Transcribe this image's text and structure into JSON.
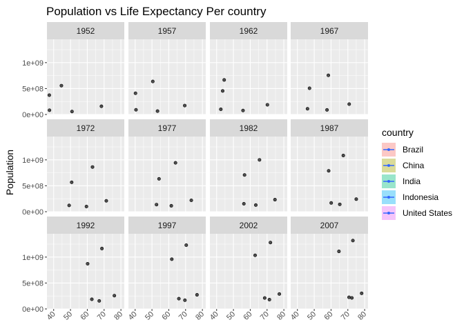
{
  "chart_data": {
    "type": "scatter",
    "title": "Population vs Life Expectancy Per country",
    "xlabel": "",
    "ylabel": "Population",
    "xlim": [
      36,
      82
    ],
    "ylim": [
      0,
      1450000000
    ],
    "x_ticks": [
      40,
      50,
      60,
      70,
      80
    ],
    "x_tick_labels": [
      "40",
      "50",
      "60",
      "70",
      "80"
    ],
    "y_ticks": [
      0,
      500000000,
      1000000000
    ],
    "y_tick_labels": [
      "0e+00",
      "5e+08",
      "1e+09"
    ],
    "grid": true,
    "legend": {
      "title": "country",
      "position": "right",
      "entries": [
        {
          "name": "Brazil",
          "color": "#F8766D"
        },
        {
          "name": "China",
          "color": "#A3A500"
        },
        {
          "name": "India",
          "color": "#00BF7D"
        },
        {
          "name": "Indonesia",
          "color": "#00B0F6"
        },
        {
          "name": "United States",
          "color": "#E76BF3"
        }
      ]
    },
    "point_color": "#333333",
    "line_color": "#3366FF",
    "facets": [
      {
        "label": "1952",
        "points": [
          [
            37.4,
            372000000
          ],
          [
            37.5,
            82000000
          ],
          [
            44.6,
            556000000
          ],
          [
            50.9,
            57000000
          ],
          [
            68.4,
            158000000
          ]
        ]
      },
      {
        "label": "1957",
        "points": [
          [
            40.2,
            409000000
          ],
          [
            40.5,
            90000000
          ],
          [
            50.5,
            637000000
          ],
          [
            53.3,
            65000000
          ],
          [
            69.5,
            172000000
          ]
        ]
      },
      {
        "label": "1962",
        "points": [
          [
            43.6,
            454000000
          ],
          [
            42.5,
            100000000
          ],
          [
            44.5,
            666000000
          ],
          [
            55.7,
            76000000
          ],
          [
            70.2,
            187000000
          ]
        ]
      },
      {
        "label": "1967",
        "points": [
          [
            47.2,
            506000000
          ],
          [
            46.0,
            110000000
          ],
          [
            58.4,
            755000000
          ],
          [
            57.6,
            88000000
          ],
          [
            70.8,
            199000000
          ]
        ]
      },
      {
        "label": "1972",
        "points": [
          [
            50.7,
            567000000
          ],
          [
            49.2,
            121000000
          ],
          [
            63.1,
            862000000
          ],
          [
            59.5,
            100000000
          ],
          [
            71.3,
            210000000
          ]
        ]
      },
      {
        "label": "1977",
        "points": [
          [
            54.2,
            634000000
          ],
          [
            52.7,
            137000000
          ],
          [
            64.0,
            943000000
          ],
          [
            61.5,
            114000000
          ],
          [
            73.4,
            220000000
          ]
        ]
      },
      {
        "label": "1982",
        "points": [
          [
            56.6,
            708000000
          ],
          [
            56.2,
            153000000
          ],
          [
            65.5,
            1000000000
          ],
          [
            63.3,
            128000000
          ],
          [
            74.7,
            232000000
          ]
        ]
      },
      {
        "label": "1987",
        "points": [
          [
            58.6,
            788000000
          ],
          [
            60.1,
            169000000
          ],
          [
            67.3,
            1084000000
          ],
          [
            65.2,
            142000000
          ],
          [
            75.0,
            242000000
          ]
        ]
      },
      {
        "label": "1992",
        "points": [
          [
            60.2,
            872000000
          ],
          [
            62.7,
            186000000
          ],
          [
            68.7,
            1165000000
          ],
          [
            67.1,
            155000000
          ],
          [
            76.1,
            256000000
          ]
        ]
      },
      {
        "label": "1997",
        "points": [
          [
            61.8,
            959000000
          ],
          [
            66.0,
            198000000
          ],
          [
            70.4,
            1230000000
          ],
          [
            69.6,
            168000000
          ],
          [
            76.8,
            272000000
          ]
        ]
      },
      {
        "label": "2002",
        "points": [
          [
            62.9,
            1034000000
          ],
          [
            68.6,
            211000000
          ],
          [
            72.0,
            1280000000
          ],
          [
            71.4,
            179000000
          ],
          [
            77.3,
            288000000
          ]
        ]
      },
      {
        "label": "2007",
        "points": [
          [
            64.7,
            1110000000
          ],
          [
            72.4,
            213000000
          ],
          [
            73.0,
            1319000000
          ],
          [
            70.7,
            224000000
          ],
          [
            78.2,
            301000000
          ]
        ]
      }
    ]
  }
}
